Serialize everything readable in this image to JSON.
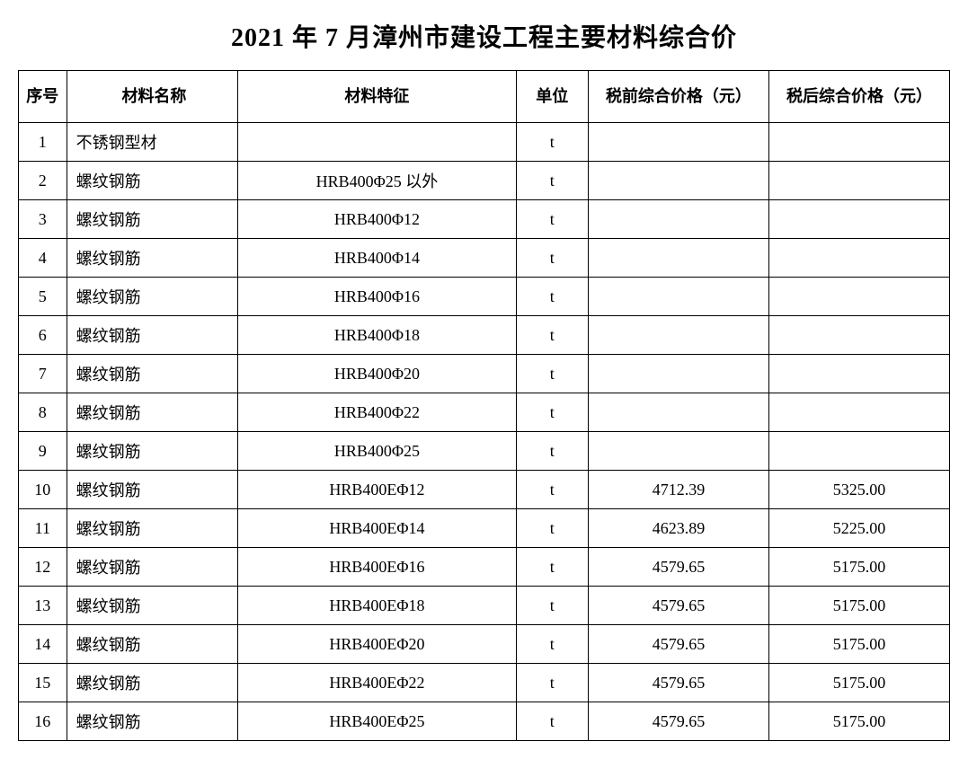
{
  "title": "2021 年 7 月漳州市建设工程主要材料综合价",
  "table": {
    "columns": {
      "seq": "序号",
      "name": "材料名称",
      "spec": "材料特征",
      "unit": "单位",
      "pretax": "税前综合价格（元）",
      "posttax": "税后综合价格（元）"
    },
    "rows": [
      {
        "seq": "1",
        "name": "不锈钢型材",
        "spec": "",
        "unit": "t",
        "pretax": "",
        "posttax": ""
      },
      {
        "seq": "2",
        "name": "螺纹钢筋",
        "spec": "HRB400Φ25 以外",
        "unit": "t",
        "pretax": "",
        "posttax": ""
      },
      {
        "seq": "3",
        "name": "螺纹钢筋",
        "spec": "HRB400Φ12",
        "unit": "t",
        "pretax": "",
        "posttax": ""
      },
      {
        "seq": "4",
        "name": "螺纹钢筋",
        "spec": "HRB400Φ14",
        "unit": "t",
        "pretax": "",
        "posttax": ""
      },
      {
        "seq": "5",
        "name": "螺纹钢筋",
        "spec": "HRB400Φ16",
        "unit": "t",
        "pretax": "",
        "posttax": ""
      },
      {
        "seq": "6",
        "name": "螺纹钢筋",
        "spec": "HRB400Φ18",
        "unit": "t",
        "pretax": "",
        "posttax": ""
      },
      {
        "seq": "7",
        "name": "螺纹钢筋",
        "spec": "HRB400Φ20",
        "unit": "t",
        "pretax": "",
        "posttax": ""
      },
      {
        "seq": "8",
        "name": "螺纹钢筋",
        "spec": "HRB400Φ22",
        "unit": "t",
        "pretax": "",
        "posttax": ""
      },
      {
        "seq": "9",
        "name": "螺纹钢筋",
        "spec": "HRB400Φ25",
        "unit": "t",
        "pretax": "",
        "posttax": ""
      },
      {
        "seq": "10",
        "name": "螺纹钢筋",
        "spec": "HRB400EΦ12",
        "unit": "t",
        "pretax": "4712.39",
        "posttax": "5325.00"
      },
      {
        "seq": "11",
        "name": "螺纹钢筋",
        "spec": "HRB400EΦ14",
        "unit": "t",
        "pretax": "4623.89",
        "posttax": "5225.00"
      },
      {
        "seq": "12",
        "name": "螺纹钢筋",
        "spec": "HRB400EΦ16",
        "unit": "t",
        "pretax": "4579.65",
        "posttax": "5175.00"
      },
      {
        "seq": "13",
        "name": "螺纹钢筋",
        "spec": "HRB400EΦ18",
        "unit": "t",
        "pretax": "4579.65",
        "posttax": "5175.00"
      },
      {
        "seq": "14",
        "name": "螺纹钢筋",
        "spec": "HRB400EΦ20",
        "unit": "t",
        "pretax": "4579.65",
        "posttax": "5175.00"
      },
      {
        "seq": "15",
        "name": "螺纹钢筋",
        "spec": "HRB400EΦ22",
        "unit": "t",
        "pretax": "4579.65",
        "posttax": "5175.00"
      },
      {
        "seq": "16",
        "name": "螺纹钢筋",
        "spec": "HRB400EΦ25",
        "unit": "t",
        "pretax": "4579.65",
        "posttax": "5175.00"
      }
    ]
  }
}
